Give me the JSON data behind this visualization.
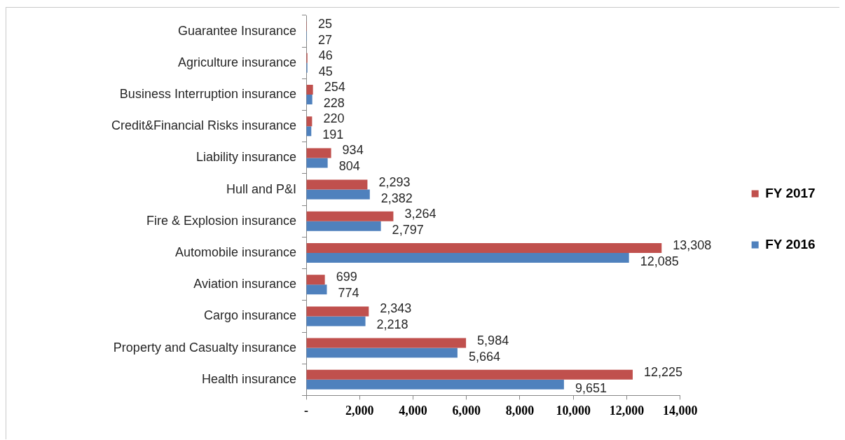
{
  "chart_data": {
    "type": "bar",
    "orientation": "horizontal",
    "categories": [
      "Guarantee Insurance",
      "Agriculture insurance",
      "Business Interruption insurance",
      "Credit&Financial Risks insurance",
      "Liability insurance",
      "Hull and P&I",
      "Fire & Explosion insurance",
      "Automobile insurance",
      "Aviation insurance",
      "Cargo insurance",
      "Property and Casualty insurance",
      "Health insurance"
    ],
    "series": [
      {
        "name": "FY 2017",
        "color": "#c0504d",
        "values": [
          25,
          46,
          254,
          220,
          934,
          2293,
          3264,
          13308,
          699,
          2343,
          5984,
          12225
        ],
        "value_labels": [
          "25",
          "46",
          "254",
          "220",
          "934",
          "2,293",
          "3,264",
          "13,308",
          "699",
          "2,343",
          "5,984",
          "12,225"
        ]
      },
      {
        "name": "FY 2016",
        "color": "#4f81bd",
        "values": [
          27,
          45,
          228,
          191,
          804,
          2382,
          2797,
          12085,
          774,
          2218,
          5664,
          9651
        ],
        "value_labels": [
          "27",
          "45",
          "228",
          "191",
          "804",
          "2,382",
          "2,797",
          "12,085",
          "774",
          "2,218",
          "5,664",
          "9,651"
        ]
      }
    ],
    "xlim": [
      0,
      14000
    ],
    "xticks": [
      {
        "value": 0,
        "label": "-"
      },
      {
        "value": 2000,
        "label": "2,000"
      },
      {
        "value": 4000,
        "label": "4,000"
      },
      {
        "value": 6000,
        "label": "6,000"
      },
      {
        "value": 8000,
        "label": "8,000"
      },
      {
        "value": 10000,
        "label": "10,000"
      },
      {
        "value": 12000,
        "label": "12,000"
      },
      {
        "value": 14000,
        "label": "14,000"
      }
    ],
    "legend": "right"
  }
}
